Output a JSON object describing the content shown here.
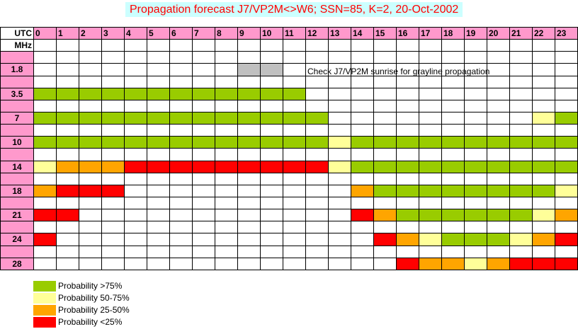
{
  "title": "Propagation forecast J7/VP2M<>W6; SSN=85, K=2, 20-Oct-2002",
  "chart_data": {
    "type": "heatmap",
    "title": "Propagation forecast J7/VP2M<>W6; SSN=85, K=2, 20-Oct-2002",
    "x_axis_label": "UTC",
    "y_axis_label": "MHz",
    "hours": [
      "0",
      "1",
      "2",
      "3",
      "4",
      "5",
      "6",
      "7",
      "8",
      "9",
      "10",
      "11",
      "12",
      "13",
      "14",
      "15",
      "16",
      "17",
      "18",
      "19",
      "20",
      "21",
      "22",
      "23"
    ],
    "bands": [
      {
        "label": "1.8",
        "row": 3,
        "cells": [
          "",
          "",
          "",
          "",
          "",
          "",
          "",
          "",
          "",
          "G",
          "G",
          "",
          "",
          "",
          "",
          "",
          "",
          "",
          "",
          "",
          "",
          "",
          "",
          ""
        ]
      },
      {
        "label": "3.5",
        "row": 5,
        "cells": [
          "A",
          "A",
          "A",
          "A",
          "A",
          "A",
          "A",
          "A",
          "A",
          "A",
          "A",
          "A",
          "",
          "",
          "",
          "",
          "",
          "",
          "",
          "",
          "",
          "",
          "",
          ""
        ]
      },
      {
        "label": "7",
        "row": 7,
        "cells": [
          "A",
          "A",
          "A",
          "A",
          "A",
          "A",
          "A",
          "A",
          "A",
          "A",
          "A",
          "A",
          "A",
          "",
          "",
          "",
          "",
          "",
          "",
          "",
          "",
          "",
          "B",
          "A"
        ]
      },
      {
        "label": "10",
        "row": 9,
        "cells": [
          "A",
          "A",
          "A",
          "A",
          "A",
          "A",
          "A",
          "A",
          "A",
          "A",
          "A",
          "A",
          "A",
          "B",
          "A",
          "A",
          "A",
          "A",
          "A",
          "A",
          "A",
          "A",
          "A",
          "A"
        ]
      },
      {
        "label": "14",
        "row": 11,
        "cells": [
          "B",
          "C",
          "C",
          "C",
          "D",
          "D",
          "D",
          "D",
          "D",
          "D",
          "D",
          "D",
          "D",
          "B",
          "A",
          "A",
          "A",
          "A",
          "A",
          "A",
          "A",
          "A",
          "A",
          "A"
        ]
      },
      {
        "label": "18",
        "row": 13,
        "cells": [
          "C",
          "D",
          "D",
          "D",
          "",
          "",
          "",
          "",
          "",
          "",
          "",
          "",
          "",
          "",
          "C",
          "A",
          "A",
          "A",
          "A",
          "A",
          "A",
          "A",
          "A",
          "B"
        ]
      },
      {
        "label": "21",
        "row": 15,
        "cells": [
          "D",
          "D",
          "",
          "",
          "",
          "",
          "",
          "",
          "",
          "",
          "",
          "",
          "",
          "",
          "D",
          "C",
          "A",
          "A",
          "A",
          "A",
          "A",
          "A",
          "B",
          "C"
        ]
      },
      {
        "label": "24",
        "row": 17,
        "cells": [
          "D",
          "",
          "",
          "",
          "",
          "",
          "",
          "",
          "",
          "",
          "",
          "",
          "",
          "",
          "",
          "D",
          "C",
          "B",
          "A",
          "A",
          "A",
          "B",
          "C",
          "D"
        ]
      },
      {
        "label": "28",
        "row": 19,
        "cells": [
          "",
          "",
          "",
          "",
          "",
          "",
          "",
          "",
          "",
          "",
          "",
          "",
          "",
          "",
          "",
          "",
          "D",
          "C",
          "C",
          "B",
          "C",
          "D",
          "D",
          "D"
        ]
      }
    ],
    "note": "Check J7/VP2M sunrise for grayline propagation",
    "colors": {
      "A": "#99cc00",
      "B": "#ffff99",
      "C": "#ffa500",
      "D": "#ff0000",
      "G": "#c0c0c0",
      "header": "#ff99cc",
      "title_bg": "#ccffff",
      "title_text": "#ff0000"
    },
    "legend": [
      {
        "key": "A",
        "label": "Probability >75%"
      },
      {
        "key": "B",
        "label": "Probability 50-75%"
      },
      {
        "key": "C",
        "label": "Probability 25-50%"
      },
      {
        "key": "D",
        "label": "Probability <25%"
      }
    ]
  }
}
